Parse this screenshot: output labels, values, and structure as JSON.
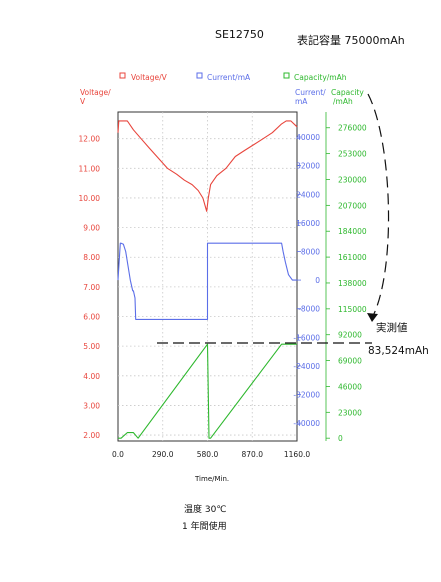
{
  "chart_data": {
    "type": "line",
    "title": "SE12750",
    "annotation_rated": "表記容量 75000mAh",
    "annotation_measured_label": "実測値",
    "annotation_measured_value": "83,524mAh",
    "caption_lines": [
      "温度 30℃",
      "1 年間使用"
    ],
    "xlabel": "Time/Min.",
    "xlim": [
      0,
      1160
    ],
    "x_ticks": [
      "0.0",
      "290.0",
      "580.0",
      "870.0",
      "1160.0"
    ],
    "x_tick_values": [
      0,
      290,
      580,
      870,
      1160
    ],
    "grid": true,
    "legend_position": "top",
    "axes": {
      "voltage": {
        "label_lines": [
          "Voltage/",
          "V"
        ],
        "ylim": [
          1.8,
          12.9
        ],
        "ticks": [
          "12.00",
          "11.00",
          "10.00",
          "9.00",
          "8.00",
          "7.00",
          "6.00",
          "5.00",
          "4.00",
          "3.00",
          "2.00"
        ],
        "tick_values": [
          12,
          11,
          10,
          9,
          8,
          7,
          6,
          5,
          4,
          3,
          2
        ],
        "color": "#e8453c"
      },
      "current": {
        "label_lines": [
          "Current/",
          "mA"
        ],
        "ylim": [
          -45000,
          47000
        ],
        "ticks": [
          "40000",
          "32000",
          "24000",
          "16000",
          "8000",
          "0",
          "-8000",
          "-16000",
          "-24000",
          "-32000",
          "-40000"
        ],
        "tick_values": [
          40000,
          32000,
          24000,
          16000,
          8000,
          0,
          -8000,
          -16000,
          -24000,
          -32000,
          -40000
        ],
        "color": "#5b6ee8"
      },
      "capacity": {
        "label_lines": [
          "Capacity",
          "/mAh"
        ],
        "ylim": [
          -2500,
          290000
        ],
        "ticks": [
          "276000",
          "253000",
          "230000",
          "207000",
          "184000",
          "161000",
          "138000",
          "115000",
          "92000",
          "69000",
          "46000",
          "23000",
          "0"
        ],
        "tick_values": [
          276000,
          253000,
          230000,
          207000,
          184000,
          161000,
          138000,
          115000,
          92000,
          69000,
          46000,
          23000,
          0
        ],
        "color": "#2eb82e"
      }
    },
    "legend": [
      {
        "label": "Voltage/V",
        "color": "#e8453c"
      },
      {
        "label": "Current/mA",
        "color": "#5b6ee8"
      },
      {
        "label": "Capacity/mAh",
        "color": "#2eb82e"
      }
    ],
    "series": [
      {
        "name": "Voltage/V",
        "axis": "voltage",
        "color": "#e8453c",
        "x": [
          0,
          5,
          15,
          60,
          100,
          150,
          200,
          260,
          320,
          380,
          430,
          480,
          520,
          550,
          575,
          585,
          600,
          640,
          700,
          760,
          820,
          880,
          940,
          1000,
          1060,
          1090,
          1120,
          1160
        ],
        "y": [
          12.2,
          12.6,
          12.6,
          12.6,
          12.3,
          12.0,
          11.7,
          11.35,
          11.0,
          10.8,
          10.6,
          10.45,
          10.25,
          10.0,
          9.55,
          10.0,
          10.45,
          10.75,
          11.0,
          11.4,
          11.6,
          11.8,
          12.0,
          12.2,
          12.5,
          12.6,
          12.6,
          12.4
        ]
      },
      {
        "name": "Current/mA",
        "axis": "current",
        "color": "#5b6ee8",
        "x": [
          0,
          15,
          20,
          35,
          50,
          65,
          80,
          95,
          100,
          110,
          115,
          130,
          580,
          580,
          590,
          1060,
          1070,
          1085,
          1105,
          1130,
          1160
        ],
        "y": [
          0,
          10300,
          10300,
          10000,
          8000,
          4000,
          0,
          -3000,
          -3000,
          -5000,
          -11000,
          -11000,
          -11000,
          10300,
          10300,
          10300,
          8000,
          5000,
          1500,
          0,
          0
        ]
      },
      {
        "name": "Capacity/mAh",
        "axis": "capacity",
        "color": "#2eb82e",
        "x": [
          0,
          20,
          60,
          100,
          130,
          580,
          590,
          600,
          1060,
          1130,
          1160
        ],
        "y": [
          0,
          0,
          5000,
          5000,
          0,
          83524,
          0,
          0,
          83524,
          83524,
          83524
        ]
      }
    ]
  }
}
